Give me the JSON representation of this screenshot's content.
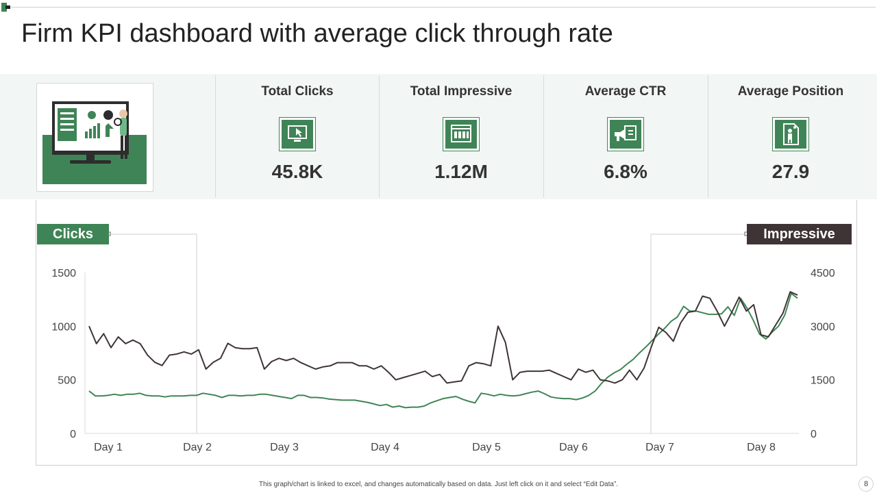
{
  "title": "Firm KPI dashboard with average click through rate",
  "kpis": [
    {
      "label": "Total Clicks",
      "value": "45.8K",
      "icon": "monitor-click-icon"
    },
    {
      "label": "Total Impressive",
      "value": "1.12M",
      "icon": "browser-window-icon"
    },
    {
      "label": "Average CTR",
      "value": "6.8%",
      "icon": "megaphone-icon"
    },
    {
      "label": "Average Position",
      "value": "27.9",
      "icon": "person-document-icon"
    }
  ],
  "colors": {
    "green": "#3f8456",
    "dark": "#3e3435",
    "band": "#f2f6f4"
  },
  "chart_tags": {
    "left": "Clicks",
    "right": "Impressive"
  },
  "chart_data": {
    "type": "line",
    "x_ticks": [
      "Day 1",
      "Day 2",
      "Day 3",
      "Day 4",
      "Day 5",
      "Day 6",
      "Day 7",
      "Day 8"
    ],
    "y_left_ticks": [
      "0",
      "500",
      "1000",
      "1500"
    ],
    "y_right_ticks": [
      "0",
      "1500",
      "3000",
      "4500"
    ],
    "ylim_left": [
      0,
      1500
    ],
    "ylim_right": [
      0,
      4500
    ],
    "series": [
      {
        "axis": "left",
        "color": "#3f8456",
        "values": [
          395,
          350,
          350,
          355,
          365,
          355,
          365,
          365,
          375,
          355,
          350,
          350,
          340,
          350,
          350,
          350,
          355,
          355,
          375,
          365,
          355,
          335,
          355,
          355,
          350,
          355,
          355,
          365,
          365,
          355,
          345,
          335,
          325,
          355,
          355,
          335,
          335,
          330,
          320,
          315,
          310,
          310,
          310,
          300,
          290,
          275,
          260,
          270,
          245,
          255,
          240,
          245,
          245,
          255,
          285,
          305,
          325,
          335,
          345,
          320,
          300,
          285,
          375,
          365,
          350,
          365,
          355,
          350,
          355,
          370,
          385,
          395,
          370,
          340,
          330,
          325,
          325,
          315,
          330,
          355,
          395,
          465,
          525,
          565,
          595,
          645,
          690,
          750,
          805,
          865,
          925,
          980,
          1045,
          1085,
          1185,
          1140,
          1140,
          1125,
          1110,
          1110,
          1115,
          1180,
          1100,
          1260,
          1170,
          1055,
          925,
          880,
          945,
          1000,
          1105,
          1305,
          1260
        ]
      },
      {
        "axis": "right",
        "color": "#3e3435",
        "values": [
          3000,
          2510,
          2790,
          2400,
          2700,
          2510,
          2610,
          2510,
          2190,
          1990,
          1900,
          2190,
          2220,
          2280,
          2220,
          2340,
          1800,
          1990,
          2100,
          2520,
          2400,
          2370,
          2370,
          2400,
          1800,
          2010,
          2100,
          2040,
          2100,
          1980,
          1890,
          1800,
          1860,
          1890,
          1980,
          1980,
          1980,
          1890,
          1890,
          1800,
          1890,
          1710,
          1500,
          1560,
          1620,
          1680,
          1740,
          1590,
          1650,
          1410,
          1440,
          1470,
          1890,
          1980,
          1950,
          1890,
          3000,
          2550,
          1500,
          1710,
          1740,
          1740,
          1740,
          1770,
          1680,
          1590,
          1500,
          1800,
          1710,
          1770,
          1500,
          1470,
          1410,
          1500,
          1770,
          1500,
          1830,
          2430,
          2970,
          2820,
          2580,
          3090,
          3390,
          3420,
          3840,
          3780,
          3420,
          3000,
          3390,
          3810,
          3420,
          3600,
          2760,
          2700,
          3030,
          3360,
          3960,
          3870
        ]
      }
    ]
  },
  "footer_note": "This graph/chart is linked to excel, and changes automatically based on data. Just left click on it and select “Edit Data”.",
  "page_number": "8"
}
